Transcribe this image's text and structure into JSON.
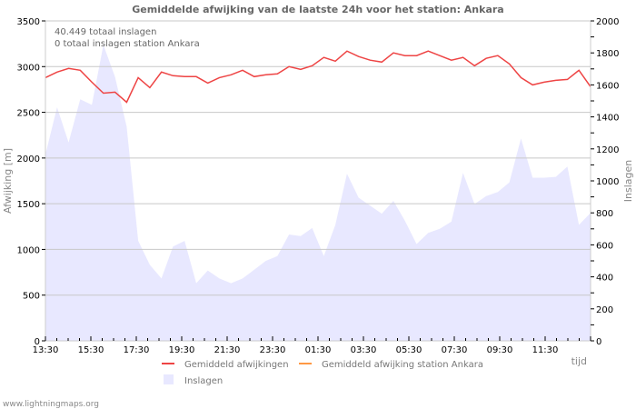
{
  "chart_data": {
    "type": "line+area",
    "title": "Gemiddelde afwijking van de laatste 24h voor het station: Ankara",
    "info_lines": [
      "40.449 totaal inslagen",
      "0 totaal inslagen station Ankara"
    ],
    "xlabel": "tijd",
    "ylabel": "Afwijking  [m]",
    "y2label": "Inslagen",
    "ylim": [
      0,
      3500
    ],
    "y2lim": [
      0,
      2000
    ],
    "yticks": [
      0,
      500,
      1000,
      1500,
      2000,
      2500,
      3000,
      3500
    ],
    "y2ticks": [
      0,
      200,
      400,
      600,
      800,
      1000,
      1200,
      1400,
      1600,
      1800,
      2000
    ],
    "xtick_labels": [
      "13:30",
      "15:30",
      "17:30",
      "19:30",
      "21:30",
      "23:30",
      "01:30",
      "03:30",
      "05:30",
      "07:30",
      "09:30",
      "11:30"
    ],
    "grid": true,
    "legend_position": "bottom",
    "colors": {
      "gemiddeld": "#ee4444",
      "station": "#ff9944",
      "inslagen": "#e8e8ff",
      "grid": "#c8c8c8"
    },
    "series": [
      {
        "name": "Gemiddeld afwijkingen",
        "axis": "left",
        "type": "line",
        "values": [
          2880,
          2940,
          2980,
          2960,
          2830,
          2710,
          2720,
          2610,
          2880,
          2770,
          2940,
          2900,
          2890,
          2890,
          2820,
          2880,
          2910,
          2960,
          2890,
          2910,
          2920,
          3000,
          2970,
          3010,
          3100,
          3060,
          3170,
          3110,
          3070,
          3050,
          3150,
          3120,
          3120,
          3170,
          3120,
          3070,
          3100,
          3010,
          3090,
          3120,
          3030,
          2880,
          2800,
          2830,
          2850,
          2860,
          2960,
          2780
        ]
      },
      {
        "name": "Gemiddeld afwijking station Ankara",
        "axis": "left",
        "type": "line",
        "values": []
      },
      {
        "name": "Inslagen",
        "axis": "right",
        "type": "area",
        "values": [
          1165,
          1460,
          1240,
          1510,
          1475,
          1850,
          1650,
          1340,
          625,
          475,
          390,
          590,
          625,
          360,
          440,
          390,
          360,
          390,
          445,
          500,
          530,
          665,
          655,
          705,
          530,
          725,
          1045,
          895,
          845,
          795,
          875,
          750,
          605,
          675,
          700,
          745,
          1050,
          855,
          905,
          930,
          990,
          1265,
          1020,
          1020,
          1025,
          1090,
          725,
          800
        ]
      }
    ]
  },
  "legend": {
    "items": [
      {
        "label": "Gemiddeld afwijkingen",
        "color": "#ee4444"
      },
      {
        "label": "Gemiddeld afwijking station Ankara",
        "color": "#ff9944"
      },
      {
        "label": "Inslagen",
        "color": "#e8e8ff"
      }
    ]
  },
  "footer": "www.lightningmaps.org"
}
